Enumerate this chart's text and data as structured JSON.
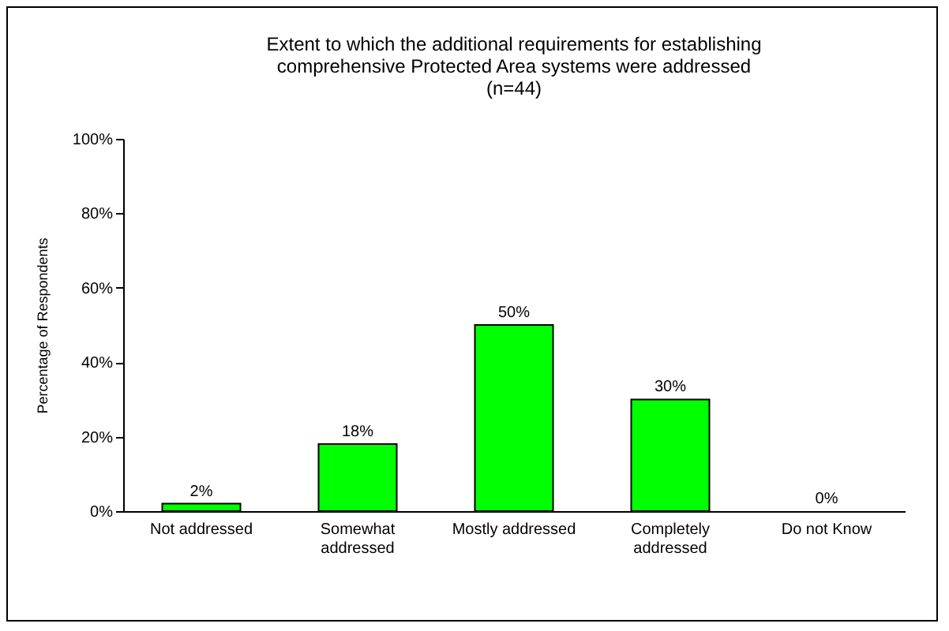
{
  "chart_data": {
    "type": "bar",
    "title": "Extent to which the additional requirements for establishing\ncomprehensive Protected Area systems were addressed\n(n=44)",
    "ylabel": "Percentage of Respondents",
    "categories": [
      "Not addressed",
      "Somewhat addressed",
      "Mostly addressed",
      "Completely addressed",
      "Do not Know"
    ],
    "values": [
      2,
      18,
      50,
      30,
      0
    ],
    "color": "#00ff00",
    "data_labels": true,
    "value_labels": [
      "2%",
      "18%",
      "50%",
      "30%",
      "0%"
    ],
    "ylim": [
      0,
      100
    ],
    "yticks": [
      {
        "value": 0,
        "label": "0%"
      },
      {
        "value": 20,
        "label": "20%"
      },
      {
        "value": 40,
        "label": "40%"
      },
      {
        "value": 60,
        "label": "60%"
      },
      {
        "value": 80,
        "label": "80%"
      },
      {
        "value": 100,
        "label": "100%"
      }
    ],
    "grid": false
  }
}
